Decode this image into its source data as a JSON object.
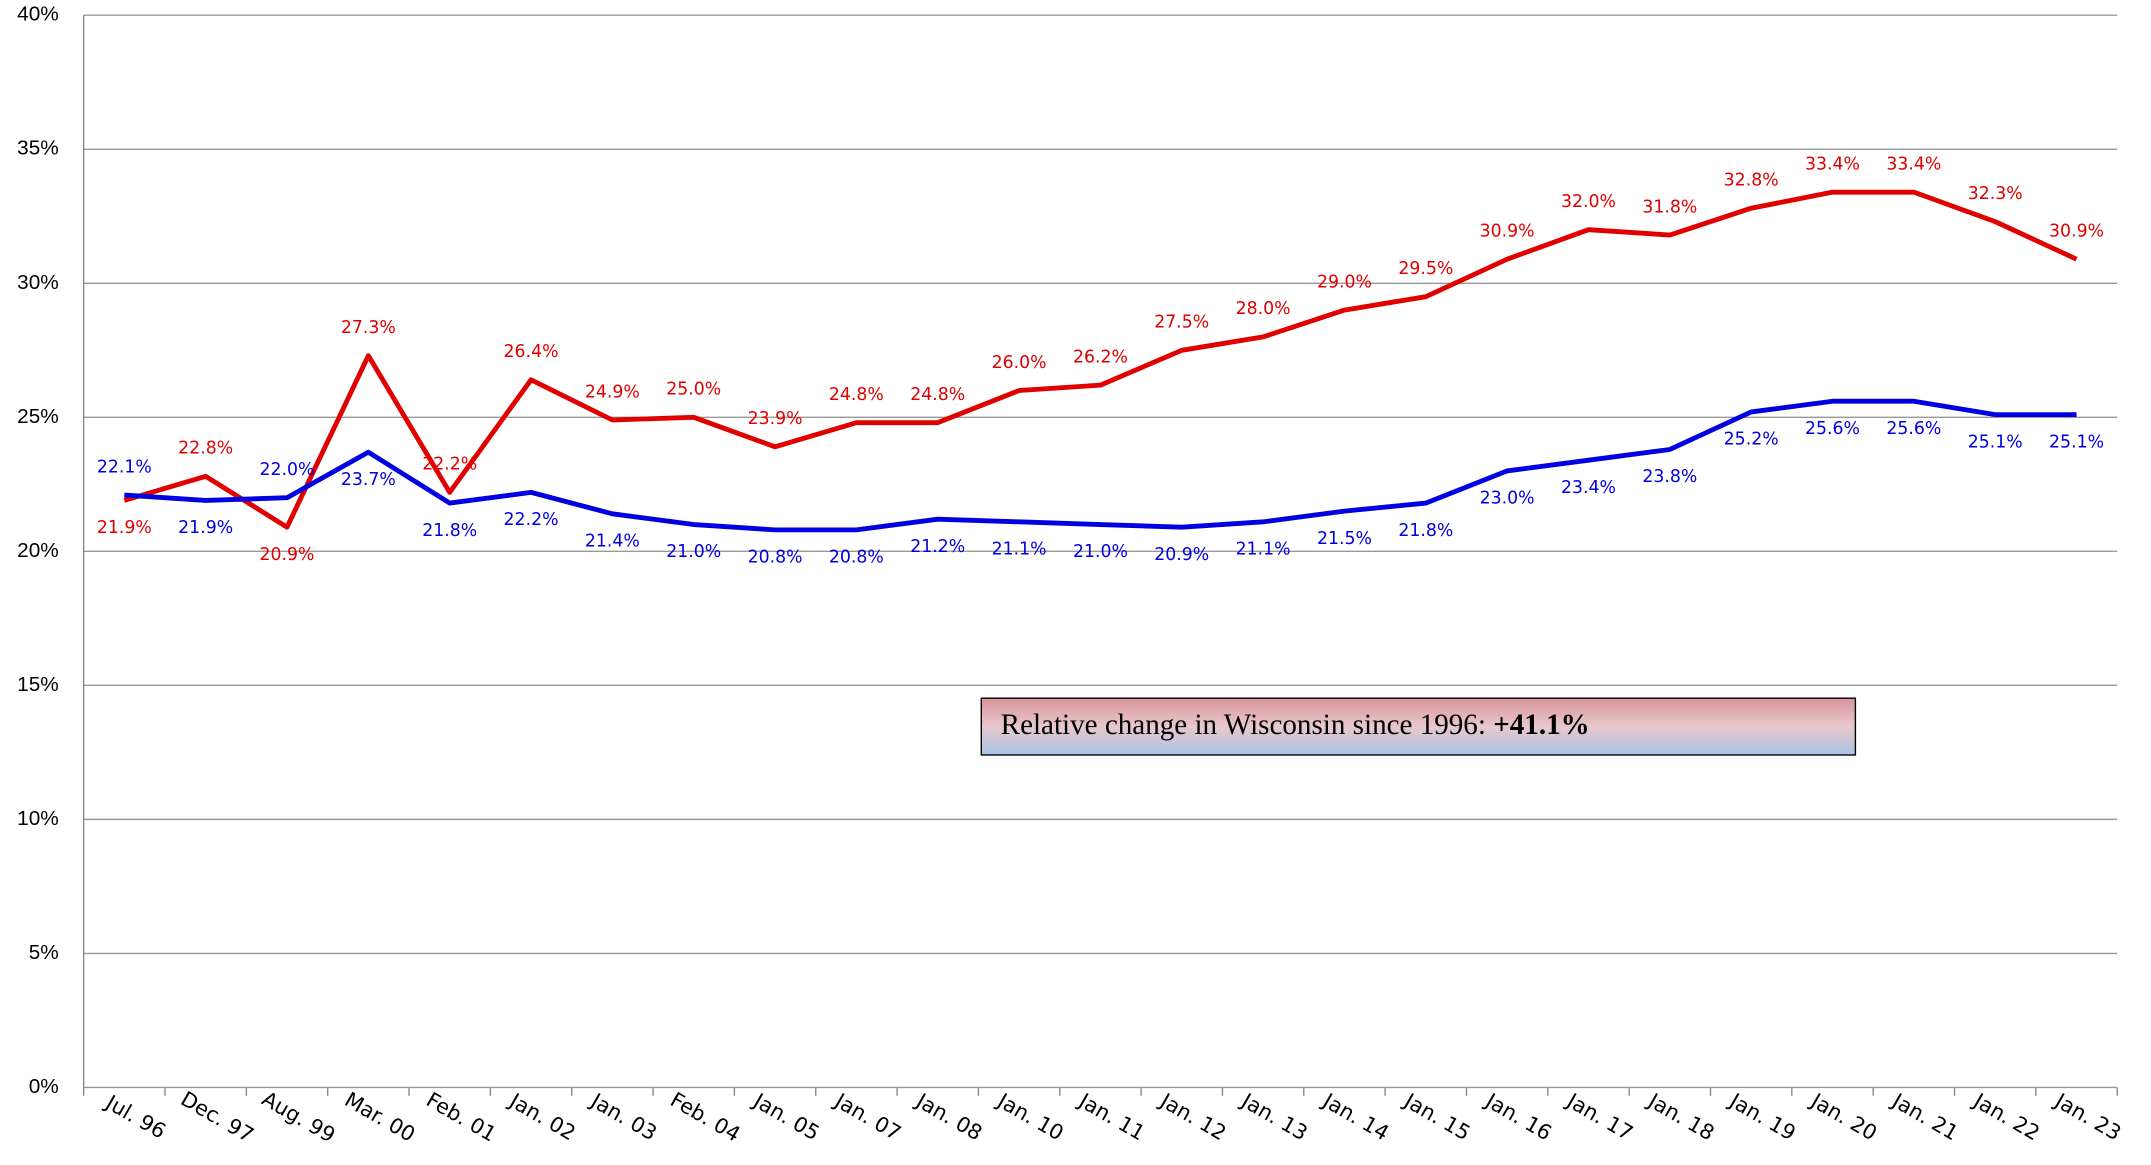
{
  "chart_data": {
    "type": "line",
    "categories": [
      "Jul. 96",
      "Dec. 97",
      "Aug. 99",
      "Mar. 00",
      "Feb. 01",
      "Jan. 02",
      "Jan. 03",
      "Feb. 04",
      "Jan. 05",
      "Jan. 07",
      "Jan. 08",
      "Jan. 10",
      "Jan. 11",
      "Jan. 12",
      "Jan. 13",
      "Jan. 14",
      "Jan. 15",
      "Jan. 16",
      "Jan. 17",
      "Jan. 18",
      "Jan. 19",
      "Jan. 20",
      "Jan. 21",
      "Jan. 22",
      "Jan. 23"
    ],
    "series": [
      {
        "color": "#e00000",
        "values": [
          21.9,
          22.8,
          20.9,
          27.3,
          22.2,
          26.4,
          24.9,
          25.0,
          23.9,
          24.8,
          24.8,
          26.0,
          26.2,
          27.5,
          28.0,
          29.0,
          29.5,
          30.9,
          32.0,
          31.8,
          32.8,
          33.4,
          33.4,
          32.3,
          30.9
        ],
        "value_labels": [
          "21.9%",
          "22.8%",
          "20.9%",
          "27.3%",
          "22.2%",
          "26.4%",
          "24.9%",
          "25.0%",
          "23.9%",
          "24.8%",
          "24.8%",
          "26.0%",
          "26.2%",
          "27.5%",
          "28.0%",
          "29.0%",
          "29.5%",
          "30.9%",
          "32.0%",
          "31.8%",
          "32.8%",
          "33.4%",
          "33.4%",
          "32.3%",
          "30.9%"
        ]
      },
      {
        "color": "#0000e0",
        "values": [
          22.1,
          21.9,
          22.0,
          23.7,
          21.8,
          22.2,
          21.4,
          21.0,
          20.8,
          20.8,
          21.2,
          21.1,
          21.0,
          20.9,
          21.1,
          21.5,
          21.8,
          23.0,
          23.4,
          23.8,
          25.2,
          25.6,
          25.6,
          25.1,
          25.1
        ],
        "value_labels": [
          "22.1%",
          "21.9%",
          "22.0%",
          "23.7%",
          "21.8%",
          "22.2%",
          "21.4%",
          "21.0%",
          "20.8%",
          "20.8%",
          "21.2%",
          "21.1%",
          "21.0%",
          "20.9%",
          "21.1%",
          "21.5%",
          "21.8%",
          "23.0%",
          "23.4%",
          "23.8%",
          "25.2%",
          "25.6%",
          "25.6%",
          "25.1%",
          "25.1%"
        ]
      }
    ],
    "ylim": [
      0,
      40
    ],
    "yticks": [
      {
        "value": 0,
        "label": "0%"
      },
      {
        "value": 5,
        "label": "5%"
      },
      {
        "value": 10,
        "label": "10%"
      },
      {
        "value": 15,
        "label": "15%"
      },
      {
        "value": 20,
        "label": "20%"
      },
      {
        "value": 25,
        "label": "25%"
      },
      {
        "value": 30,
        "label": "30%"
      },
      {
        "value": 35,
        "label": "35%"
      },
      {
        "value": 40,
        "label": "40%"
      }
    ],
    "grid": true,
    "annotation": {
      "text": "Relative change in Wisconsin since 1996: ",
      "value": "+41.1%"
    }
  }
}
